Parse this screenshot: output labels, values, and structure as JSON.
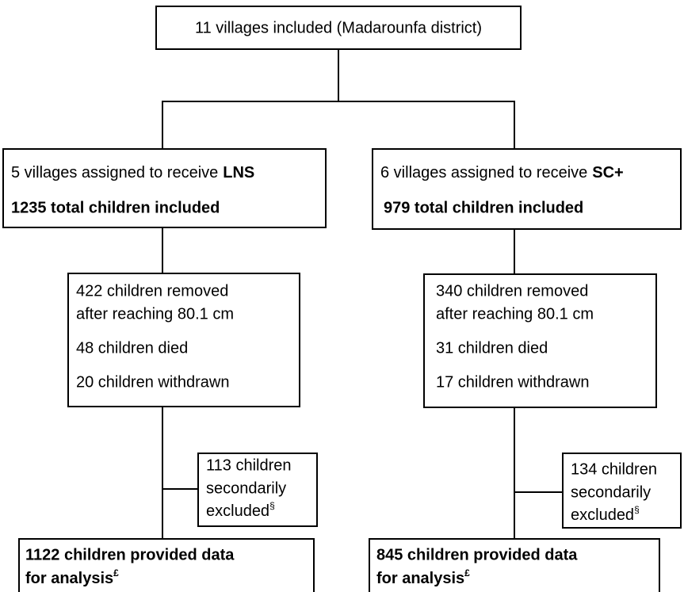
{
  "top": {
    "label": "11 villages included (Madarounfa district)"
  },
  "arms": [
    {
      "assignment": {
        "text": "5 villages assigned to receive",
        "intervention": "LNS"
      },
      "included": "1235 total children included",
      "losses": [
        "422 children removed",
        "after reaching 80.1 cm",
        "48 children died",
        "20 children withdrawn"
      ],
      "excluded": {
        "lines": [
          "113 children",
          "secondarily",
          "excluded"
        ],
        "note": "§"
      },
      "analysed": {
        "lines": [
          "1122 children provided data",
          "for analysis"
        ],
        "note": "£"
      }
    },
    {
      "assignment": {
        "text": "6 villages assigned to receive",
        "intervention": "SC+"
      },
      "included": "979 total children included",
      "losses": [
        "340 children removed",
        "after reaching 80.1 cm",
        "31 children died",
        "17 children withdrawn"
      ],
      "excluded": {
        "lines": [
          "134 children",
          "secondarily",
          "excluded"
        ],
        "note": "§"
      },
      "analysed": {
        "lines": [
          "845 children provided data",
          "for analysis"
        ],
        "note": "£"
      }
    }
  ]
}
